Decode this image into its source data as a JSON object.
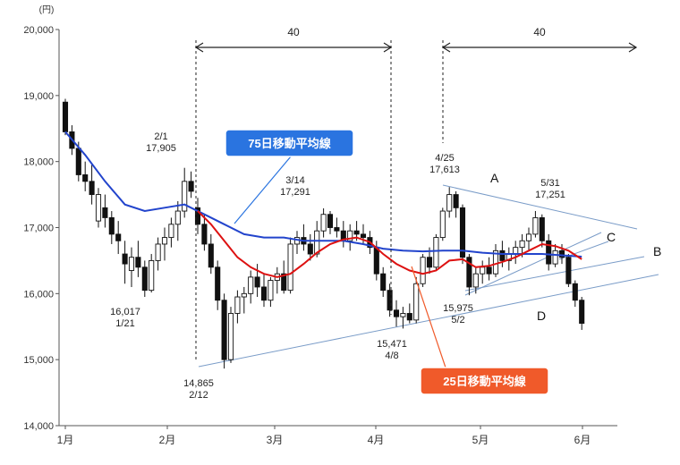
{
  "chart_data": {
    "type": "candlestick",
    "y_unit": "(円)",
    "ylim": [
      14000,
      20000
    ],
    "y_ticks": [
      "14,000",
      "15,000",
      "16,000",
      "17,000",
      "18,000",
      "19,000",
      "20,000"
    ],
    "y_tick_values": [
      14000,
      15000,
      16000,
      17000,
      18000,
      19000,
      20000
    ],
    "x_ticks": [
      "1月",
      "2月",
      "3月",
      "4月",
      "5月",
      "6月"
    ],
    "grid": false,
    "candles": [
      [
        18900,
        18950,
        18400,
        18450
      ],
      [
        18450,
        18550,
        18100,
        18200
      ],
      [
        18200,
        18300,
        17700,
        17800
      ],
      [
        17800,
        18000,
        17550,
        17700
      ],
      [
        17700,
        17950,
        17350,
        17500
      ],
      [
        17100,
        17600,
        17000,
        17500
      ],
      [
        17300,
        17500,
        17000,
        17150
      ],
      [
        17150,
        17250,
        16750,
        16900
      ],
      [
        16900,
        17100,
        16600,
        16800
      ],
      [
        16600,
        16800,
        16150,
        16450
      ],
      [
        16350,
        16700,
        16100,
        16550
      ],
      [
        16550,
        16800,
        16250,
        16400
      ],
      [
        16400,
        16500,
        15950,
        16050
      ],
      [
        16050,
        16600,
        16017,
        16500
      ],
      [
        16500,
        16850,
        16350,
        16750
      ],
      [
        16750,
        17000,
        16500,
        16850
      ],
      [
        16850,
        17150,
        16700,
        17050
      ],
      [
        17050,
        17400,
        16800,
        17250
      ],
      [
        17250,
        17905,
        17150,
        17700
      ],
      [
        17700,
        17850,
        17450,
        17550
      ],
      [
        17300,
        17450,
        16900,
        17050
      ],
      [
        17050,
        17200,
        16650,
        16750
      ],
      [
        16750,
        16900,
        16300,
        16400
      ],
      [
        16400,
        16500,
        15750,
        15900
      ],
      [
        15900,
        16000,
        14865,
        15000
      ],
      [
        15000,
        15800,
        14950,
        15700
      ],
      [
        15700,
        16050,
        15550,
        15950
      ],
      [
        15950,
        16100,
        15700,
        16000
      ],
      [
        16000,
        16350,
        15850,
        16250
      ],
      [
        16250,
        16450,
        15950,
        16100
      ],
      [
        16100,
        16300,
        15800,
        15900
      ],
      [
        15900,
        16250,
        15800,
        16200
      ],
      [
        16200,
        16400,
        16000,
        16300
      ],
      [
        16300,
        16500,
        16000,
        16050
      ],
      [
        16050,
        16850,
        16000,
        16750
      ],
      [
        16750,
        16950,
        16600,
        16850
      ],
      [
        16850,
        17050,
        16650,
        16750
      ],
      [
        16750,
        16900,
        16500,
        16600
      ],
      [
        16600,
        17100,
        16550,
        16950
      ],
      [
        16950,
        17291,
        16850,
        17200
      ],
      [
        17200,
        17250,
        16900,
        17000
      ],
      [
        17000,
        17150,
        16850,
        16950
      ],
      [
        16950,
        17100,
        16700,
        16800
      ],
      [
        16800,
        17050,
        16650,
        16950
      ],
      [
        16950,
        17100,
        16800,
        16900
      ],
      [
        16900,
        17050,
        16750,
        16850
      ],
      [
        16850,
        16950,
        16600,
        16700
      ],
      [
        16700,
        16800,
        16200,
        16300
      ],
      [
        16300,
        16400,
        15950,
        16050
      ],
      [
        16050,
        16150,
        15650,
        15750
      ],
      [
        15750,
        15900,
        15500,
        15650
      ],
      [
        15650,
        15800,
        15471,
        15700
      ],
      [
        15700,
        15850,
        15550,
        15600
      ],
      [
        15600,
        16250,
        15550,
        16150
      ],
      [
        16150,
        16600,
        16100,
        16550
      ],
      [
        16550,
        16700,
        16300,
        16400
      ],
      [
        16400,
        16900,
        16350,
        16850
      ],
      [
        16850,
        17300,
        16800,
        17250
      ],
      [
        17250,
        17613,
        17150,
        17500
      ],
      [
        17500,
        17550,
        17150,
        17300
      ],
      [
        17300,
        17350,
        16450,
        16550
      ],
      [
        16550,
        16600,
        15975,
        16100
      ],
      [
        16100,
        16400,
        16000,
        16300
      ],
      [
        16300,
        16500,
        16150,
        16400
      ],
      [
        16400,
        16550,
        16200,
        16300
      ],
      [
        16300,
        16750,
        16250,
        16650
      ],
      [
        16650,
        16800,
        16400,
        16500
      ],
      [
        16500,
        16700,
        16350,
        16600
      ],
      [
        16600,
        16800,
        16450,
        16700
      ],
      [
        16700,
        16900,
        16550,
        16800
      ],
      [
        16800,
        17000,
        16650,
        16900
      ],
      [
        16900,
        17251,
        16850,
        17150
      ],
      [
        17150,
        17200,
        16700,
        16800
      ],
      [
        16800,
        16900,
        16350,
        16450
      ],
      [
        16450,
        16750,
        16400,
        16650
      ],
      [
        16650,
        16750,
        16450,
        16550
      ],
      [
        16550,
        16600,
        16100,
        16150
      ],
      [
        16150,
        16200,
        15800,
        15900
      ],
      [
        15900,
        15950,
        15450,
        15550
      ]
    ],
    "moving_averages": [
      {
        "name": "75日移動平均線",
        "color": "#2244cc",
        "points": [
          [
            0,
            18450
          ],
          [
            3,
            18100
          ],
          [
            6,
            17700
          ],
          [
            9,
            17350
          ],
          [
            12,
            17250
          ],
          [
            15,
            17300
          ],
          [
            18,
            17350
          ],
          [
            21,
            17200
          ],
          [
            24,
            17050
          ],
          [
            27,
            16900
          ],
          [
            30,
            16850
          ],
          [
            33,
            16850
          ],
          [
            36,
            16800
          ],
          [
            39,
            16800
          ],
          [
            42,
            16800
          ],
          [
            45,
            16750
          ],
          [
            48,
            16680
          ],
          [
            51,
            16650
          ],
          [
            54,
            16640
          ],
          [
            57,
            16650
          ],
          [
            60,
            16650
          ],
          [
            63,
            16620
          ],
          [
            66,
            16600
          ],
          [
            69,
            16600
          ],
          [
            72,
            16600
          ],
          [
            75,
            16580
          ],
          [
            78,
            16560
          ]
        ]
      },
      {
        "name": "25日移動平均線",
        "color": "#dd1111",
        "points": [
          [
            20,
            17250
          ],
          [
            22,
            17050
          ],
          [
            24,
            16800
          ],
          [
            26,
            16550
          ],
          [
            28,
            16400
          ],
          [
            30,
            16300
          ],
          [
            32,
            16250
          ],
          [
            34,
            16300
          ],
          [
            36,
            16450
          ],
          [
            38,
            16620
          ],
          [
            40,
            16750
          ],
          [
            42,
            16820
          ],
          [
            44,
            16850
          ],
          [
            46,
            16780
          ],
          [
            48,
            16600
          ],
          [
            50,
            16450
          ],
          [
            52,
            16350
          ],
          [
            54,
            16300
          ],
          [
            56,
            16350
          ],
          [
            58,
            16500
          ],
          [
            60,
            16520
          ],
          [
            62,
            16400
          ],
          [
            64,
            16420
          ],
          [
            66,
            16480
          ],
          [
            68,
            16550
          ],
          [
            70,
            16650
          ],
          [
            72,
            16750
          ],
          [
            74,
            16720
          ],
          [
            76,
            16650
          ],
          [
            78,
            16520
          ]
        ]
      }
    ],
    "annotations": [
      {
        "lines": [
          "16,017",
          "1/21"
        ],
        "at": [
          13,
          16017
        ]
      },
      {
        "lines": [
          "2/1",
          "17,905"
        ],
        "at": [
          18,
          17905
        ]
      },
      {
        "lines": [
          "14,865",
          "2/12"
        ],
        "at": [
          24,
          14865
        ]
      },
      {
        "lines": [
          "3/14",
          "17,291"
        ],
        "at": [
          39,
          17291
        ]
      },
      {
        "lines": [
          "15,471",
          "4/8"
        ],
        "at": [
          51,
          15471
        ]
      },
      {
        "lines": [
          "4/25",
          "17,613"
        ],
        "at": [
          58,
          17613
        ]
      },
      {
        "lines": [
          "15,975",
          "5/2"
        ],
        "at": [
          61,
          15975
        ]
      },
      {
        "lines": [
          "5/31",
          "17,251"
        ],
        "at": [
          71,
          17251
        ]
      }
    ],
    "trend_labels": [
      "A",
      "B",
      "C",
      "D"
    ],
    "spans": [
      {
        "label": "40",
        "from": 24,
        "to": 51
      },
      {
        "label": "40",
        "from": 58,
        "to": 83
      }
    ],
    "callouts": [
      {
        "text": "75日移動平均線",
        "color": "#2a74e0"
      },
      {
        "text": "25日移動平均線",
        "color": "#f05a2a"
      }
    ]
  }
}
